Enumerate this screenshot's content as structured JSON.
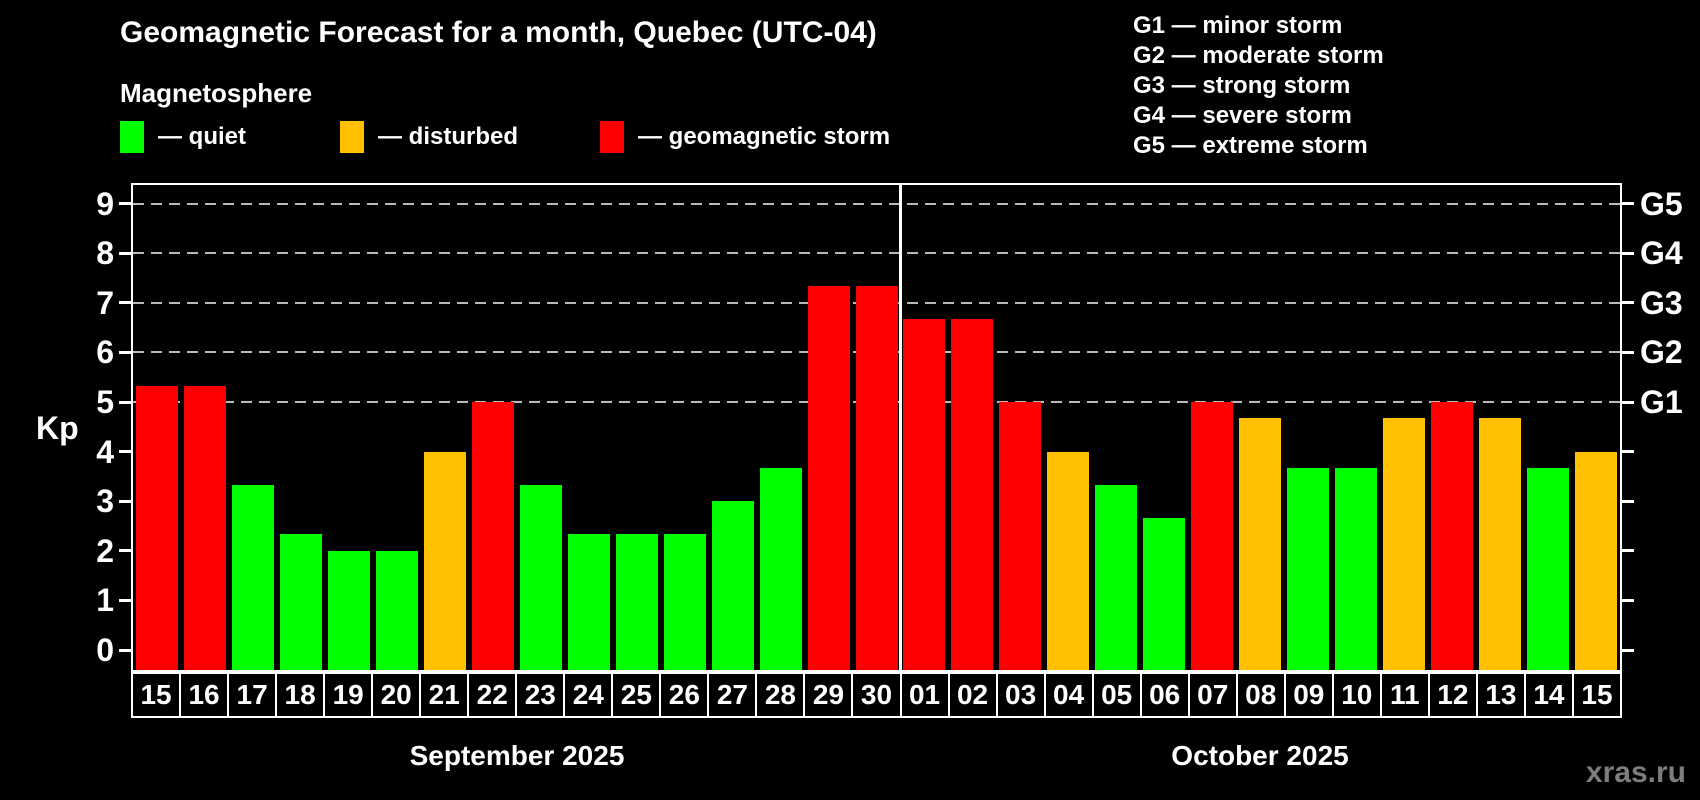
{
  "title": "Geomagnetic Forecast for a month, Quebec (UTC-04)",
  "subtitle": "Magnetosphere",
  "legend": {
    "quiet_label": "— quiet",
    "disturbed_label": "— disturbed",
    "storm_label": "— geomagnetic storm"
  },
  "storm_scale": [
    "G1 — minor storm",
    "G2 — moderate storm",
    "G3 — strong storm",
    "G4 — severe storm",
    "G5 — extreme storm"
  ],
  "colors": {
    "quiet": "#00ff00",
    "disturbed": "#ffc000",
    "storm": "#ff0000"
  },
  "months": [
    {
      "name": "September 2025"
    },
    {
      "name": "October 2025"
    }
  ],
  "watermark": "xras.ru",
  "chart_data": {
    "type": "bar",
    "title": "Geomagnetic Forecast for a month, Quebec (UTC-04)",
    "subtitle": "Magnetosphere",
    "xlabel": "",
    "ylabel": "Kp",
    "ylim": [
      0,
      9
    ],
    "axis_drawn_range": [
      -0.4,
      9.45
    ],
    "grid": "dashed horizontal at Kp 5..9",
    "y_ticks": [
      0,
      1,
      2,
      3,
      4,
      5,
      6,
      7,
      8,
      9
    ],
    "gridlines_at": [
      5,
      6,
      7,
      8,
      9
    ],
    "right_axis_labels": [
      {
        "value": 5,
        "label": "G1"
      },
      {
        "value": 6,
        "label": "G2"
      },
      {
        "value": 7,
        "label": "G3"
      },
      {
        "value": 8,
        "label": "G4"
      },
      {
        "value": 9,
        "label": "G5"
      }
    ],
    "month_split_index": 16,
    "categories": [
      "15",
      "16",
      "17",
      "18",
      "19",
      "20",
      "21",
      "22",
      "23",
      "24",
      "25",
      "26",
      "27",
      "28",
      "29",
      "30",
      "01",
      "02",
      "03",
      "04",
      "05",
      "06",
      "07",
      "08",
      "09",
      "10",
      "11",
      "12",
      "13",
      "14",
      "15"
    ],
    "values": [
      5.33,
      5.33,
      3.33,
      2.33,
      2.0,
      2.0,
      4.0,
      5.0,
      3.33,
      2.33,
      2.33,
      2.33,
      3.0,
      3.67,
      7.33,
      7.33,
      6.67,
      6.67,
      5.0,
      4.0,
      3.33,
      2.67,
      5.0,
      4.67,
      3.67,
      3.67,
      4.67,
      5.0,
      4.67,
      3.67,
      4.0
    ],
    "levels": [
      "storm",
      "storm",
      "quiet",
      "quiet",
      "quiet",
      "quiet",
      "disturbed",
      "storm",
      "quiet",
      "quiet",
      "quiet",
      "quiet",
      "quiet",
      "quiet",
      "storm",
      "storm",
      "storm",
      "storm",
      "storm",
      "disturbed",
      "quiet",
      "quiet",
      "storm",
      "disturbed",
      "quiet",
      "quiet",
      "disturbed",
      "storm",
      "disturbed",
      "quiet",
      "disturbed"
    ]
  }
}
